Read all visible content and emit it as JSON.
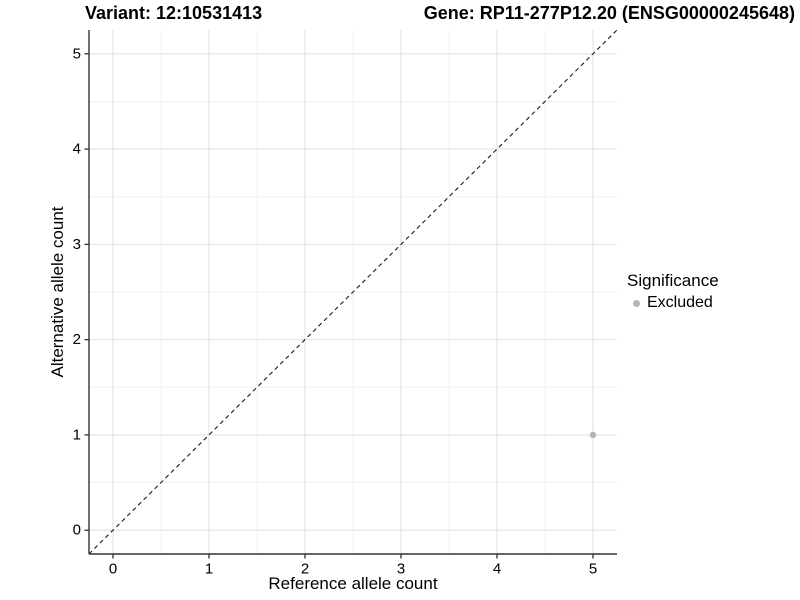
{
  "chart_data": {
    "type": "scatter",
    "titles": {
      "left": "Variant: 12:10531413",
      "right": "Gene: RP11-277P12.20 (ENSG00000245648)"
    },
    "xlabel": "Reference allele count",
    "ylabel": "Alternative allele count",
    "xlim": [
      -0.25,
      5.25
    ],
    "ylim": [
      -0.25,
      5.25
    ],
    "xticks": [
      0,
      1,
      2,
      3,
      4,
      5
    ],
    "yticks": [
      0,
      1,
      2,
      3,
      4,
      5
    ],
    "grid": {
      "show_major": true,
      "show_minor": true,
      "minor_offsets": [
        0.5,
        1.5,
        2.5,
        3.5,
        4.5
      ],
      "major_color": "#e2e2e2",
      "minor_color": "#f0f0f0",
      "background": "#ffffff"
    },
    "identity_line": {
      "style": "dashed",
      "color": "#1a1a1a",
      "from": [
        -0.25,
        -0.25
      ],
      "to": [
        5.25,
        5.25
      ]
    },
    "points": [
      {
        "x": 5,
        "y": 1,
        "significance": "Excluded",
        "color": "#b5b5b5",
        "radius": 3.2
      }
    ],
    "legend": {
      "title": "Significance",
      "position": "right",
      "entries": [
        {
          "label": "Excluded",
          "color": "#b5b5b5"
        }
      ]
    },
    "axis_color": "#333333",
    "text_color": "#000000"
  }
}
